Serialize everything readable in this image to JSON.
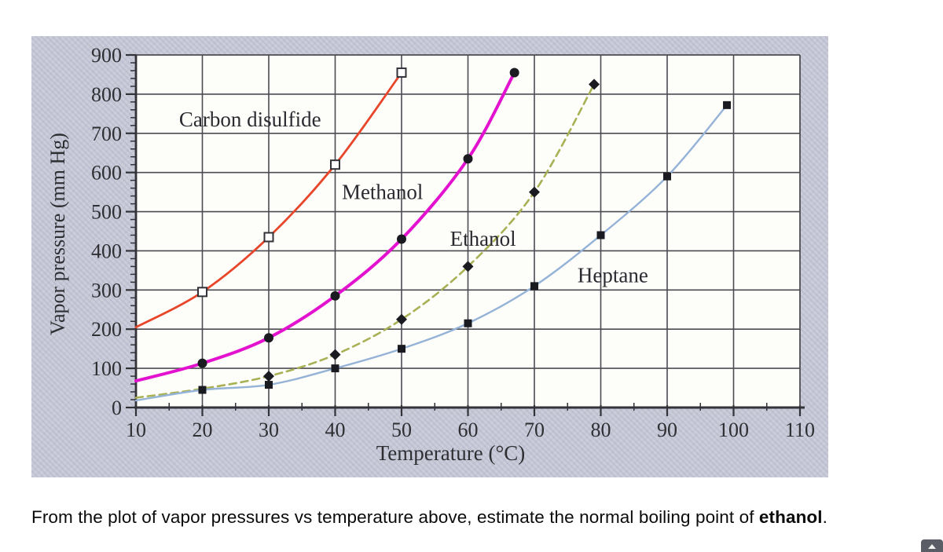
{
  "question": {
    "prefix": "From the plot of vapor pressures vs temperature above, estimate the normal boiling point of ",
    "bold": "ethanol",
    "suffix": "."
  },
  "chart_data": {
    "type": "line",
    "title": "",
    "xlabel": "Temperature (°C)",
    "ylabel": "Vapor pressure (mm Hg)",
    "xlim": [
      10,
      110
    ],
    "ylim": [
      0,
      900
    ],
    "x_tick_step": 10,
    "x_minor_step": 5,
    "y_tick_step": 100,
    "y_minor_step": 20,
    "grid": true,
    "legend_position": "inline-labels",
    "colors": {
      "panel_background": "#cbcdda",
      "plot_background": "#fdfdfa",
      "axis": "#323238",
      "grid": "#4b4b52",
      "tick_text": "#2e2e33",
      "marker_dark": "#1a1a21",
      "marker_open_fill": "#ffffff"
    },
    "series": [
      {
        "name": "Carbon disulfide",
        "color": "#e8462a",
        "line_style": "solid",
        "line_width": 2.8,
        "marker": "open-square",
        "first_marker_index": 1,
        "label_anchor": {
          "x": 16.5,
          "y": 718
        },
        "points": [
          [
            10,
            205
          ],
          [
            20,
            295
          ],
          [
            30,
            435
          ],
          [
            40,
            620
          ],
          [
            50,
            855
          ]
        ]
      },
      {
        "name": "Methanol",
        "color": "#e212ce",
        "line_style": "solid",
        "line_width": 4,
        "marker": "filled-circle",
        "first_marker_index": 1,
        "label_anchor": {
          "x": 41,
          "y": 532
        },
        "points": [
          [
            10,
            68
          ],
          [
            20,
            113
          ],
          [
            30,
            178
          ],
          [
            40,
            285
          ],
          [
            50,
            430
          ],
          [
            60,
            635
          ],
          [
            67,
            855
          ]
        ]
      },
      {
        "name": "Ethanol",
        "color": "#a9b155",
        "line_style": "dashed",
        "line_width": 2.6,
        "marker": "filled-diamond",
        "first_marker_index": 2,
        "label_anchor": {
          "x": 57.3,
          "y": 413
        },
        "points": [
          [
            10,
            25
          ],
          [
            20,
            48
          ],
          [
            30,
            80
          ],
          [
            40,
            135
          ],
          [
            50,
            225
          ],
          [
            60,
            360
          ],
          [
            70,
            550
          ],
          [
            79,
            825
          ]
        ]
      },
      {
        "name": "Heptane",
        "color": "#95b3d7",
        "line_style": "solid",
        "line_width": 2.4,
        "marker": "filled-square",
        "first_marker_index": 1,
        "label_anchor": {
          "x": 76.5,
          "y": 320
        },
        "points": [
          [
            10,
            18
          ],
          [
            20,
            45
          ],
          [
            30,
            58
          ],
          [
            40,
            100
          ],
          [
            50,
            150
          ],
          [
            60,
            215
          ],
          [
            70,
            310
          ],
          [
            80,
            440
          ],
          [
            90,
            590
          ],
          [
            99,
            772
          ]
        ]
      }
    ]
  }
}
